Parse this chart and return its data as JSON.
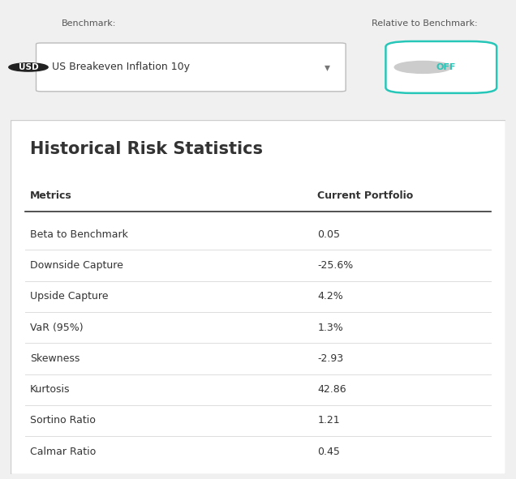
{
  "title": "Historical Risk Statistics",
  "header_metrics": "Metrics",
  "header_portfolio": "Current Portfolio",
  "rows": [
    {
      "metric": "Beta to Benchmark",
      "value": "0.05"
    },
    {
      "metric": "Downside Capture",
      "value": "-25.6%"
    },
    {
      "metric": "Upside Capture",
      "value": "4.2%"
    },
    {
      "metric": "VaR (95%)",
      "value": "1.3%"
    },
    {
      "metric": "Skewness",
      "value": "-2.93"
    },
    {
      "metric": "Kurtosis",
      "value": "42.86"
    },
    {
      "metric": "Sortino Ratio",
      "value": "1.21"
    },
    {
      "metric": "Calmar Ratio",
      "value": "0.45"
    }
  ],
  "benchmark_label": "Benchmark:",
  "benchmark_value": "US Breakeven Inflation 10y",
  "relative_label": "Relative to Benchmark:",
  "toggle_text": "OFF",
  "usd_label": "USD",
  "bg_top": "#f0f0f0",
  "bg_table": "#ffffff",
  "border_color": "#cccccc",
  "header_line_color": "#333333",
  "row_line_color": "#dddddd",
  "text_color": "#333333",
  "label_color": "#555555",
  "toggle_border": "#26c6b8",
  "toggle_text_color": "#26c6b8",
  "usd_bg": "#222222",
  "usd_text": "#ffffff",
  "title_fontsize": 15,
  "header_fontsize": 9,
  "row_fontsize": 9,
  "benchmark_fontsize": 8
}
